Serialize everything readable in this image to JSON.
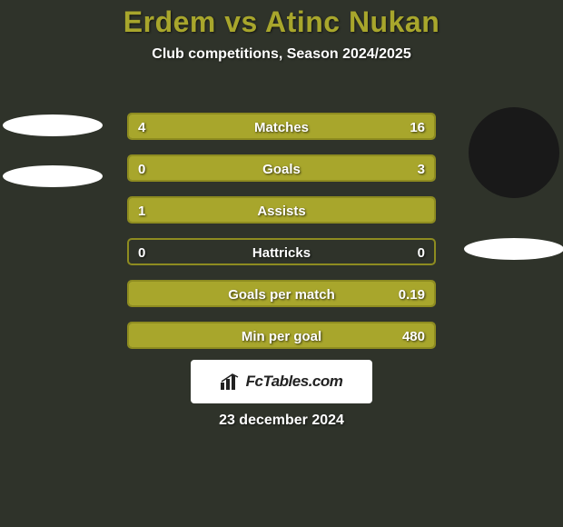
{
  "background_color": "#2f332a",
  "title": {
    "text": "Erdem vs Atinc Nukan",
    "color": "#a8a62c",
    "fontsize": 32
  },
  "subtitle": {
    "text": "Club competitions, Season 2024/2025",
    "color": "#ffffff",
    "fontsize": 16
  },
  "left_player": {
    "pill_color": "#ffffff",
    "has_avatar": false
  },
  "right_player": {
    "avatar_bg": "#191919",
    "pill_color": "#ffffff",
    "has_avatar": true
  },
  "bars": {
    "track_color": "#a8a62c",
    "border_color": "#8e8c20",
    "fill_left_color": "#a8a62c",
    "fill_right_color": "#a8a62c",
    "label_color": "#ffffff",
    "value_color": "#ffffff",
    "label_fontsize": 15,
    "value_fontsize": 15,
    "rows": [
      {
        "label": "Matches",
        "left": "4",
        "right": "16",
        "left_pct": 20,
        "right_pct": 80
      },
      {
        "label": "Goals",
        "left": "0",
        "right": "3",
        "left_pct": 0,
        "right_pct": 100
      },
      {
        "label": "Assists",
        "left": "1",
        "right": "",
        "left_pct": 100,
        "right_pct": 0
      },
      {
        "label": "Hattricks",
        "left": "0",
        "right": "0",
        "left_pct": 0,
        "right_pct": 0
      },
      {
        "label": "Goals per match",
        "left": "",
        "right": "0.19",
        "left_pct": 0,
        "right_pct": 100
      },
      {
        "label": "Min per goal",
        "left": "",
        "right": "480",
        "left_pct": 0,
        "right_pct": 100
      }
    ]
  },
  "branding": {
    "text": "FcTables.com",
    "bg_color": "#ffffff",
    "text_color": "#222222",
    "fontsize": 17
  },
  "date": {
    "text": "23 december 2024",
    "color": "#ffffff",
    "fontsize": 16
  }
}
